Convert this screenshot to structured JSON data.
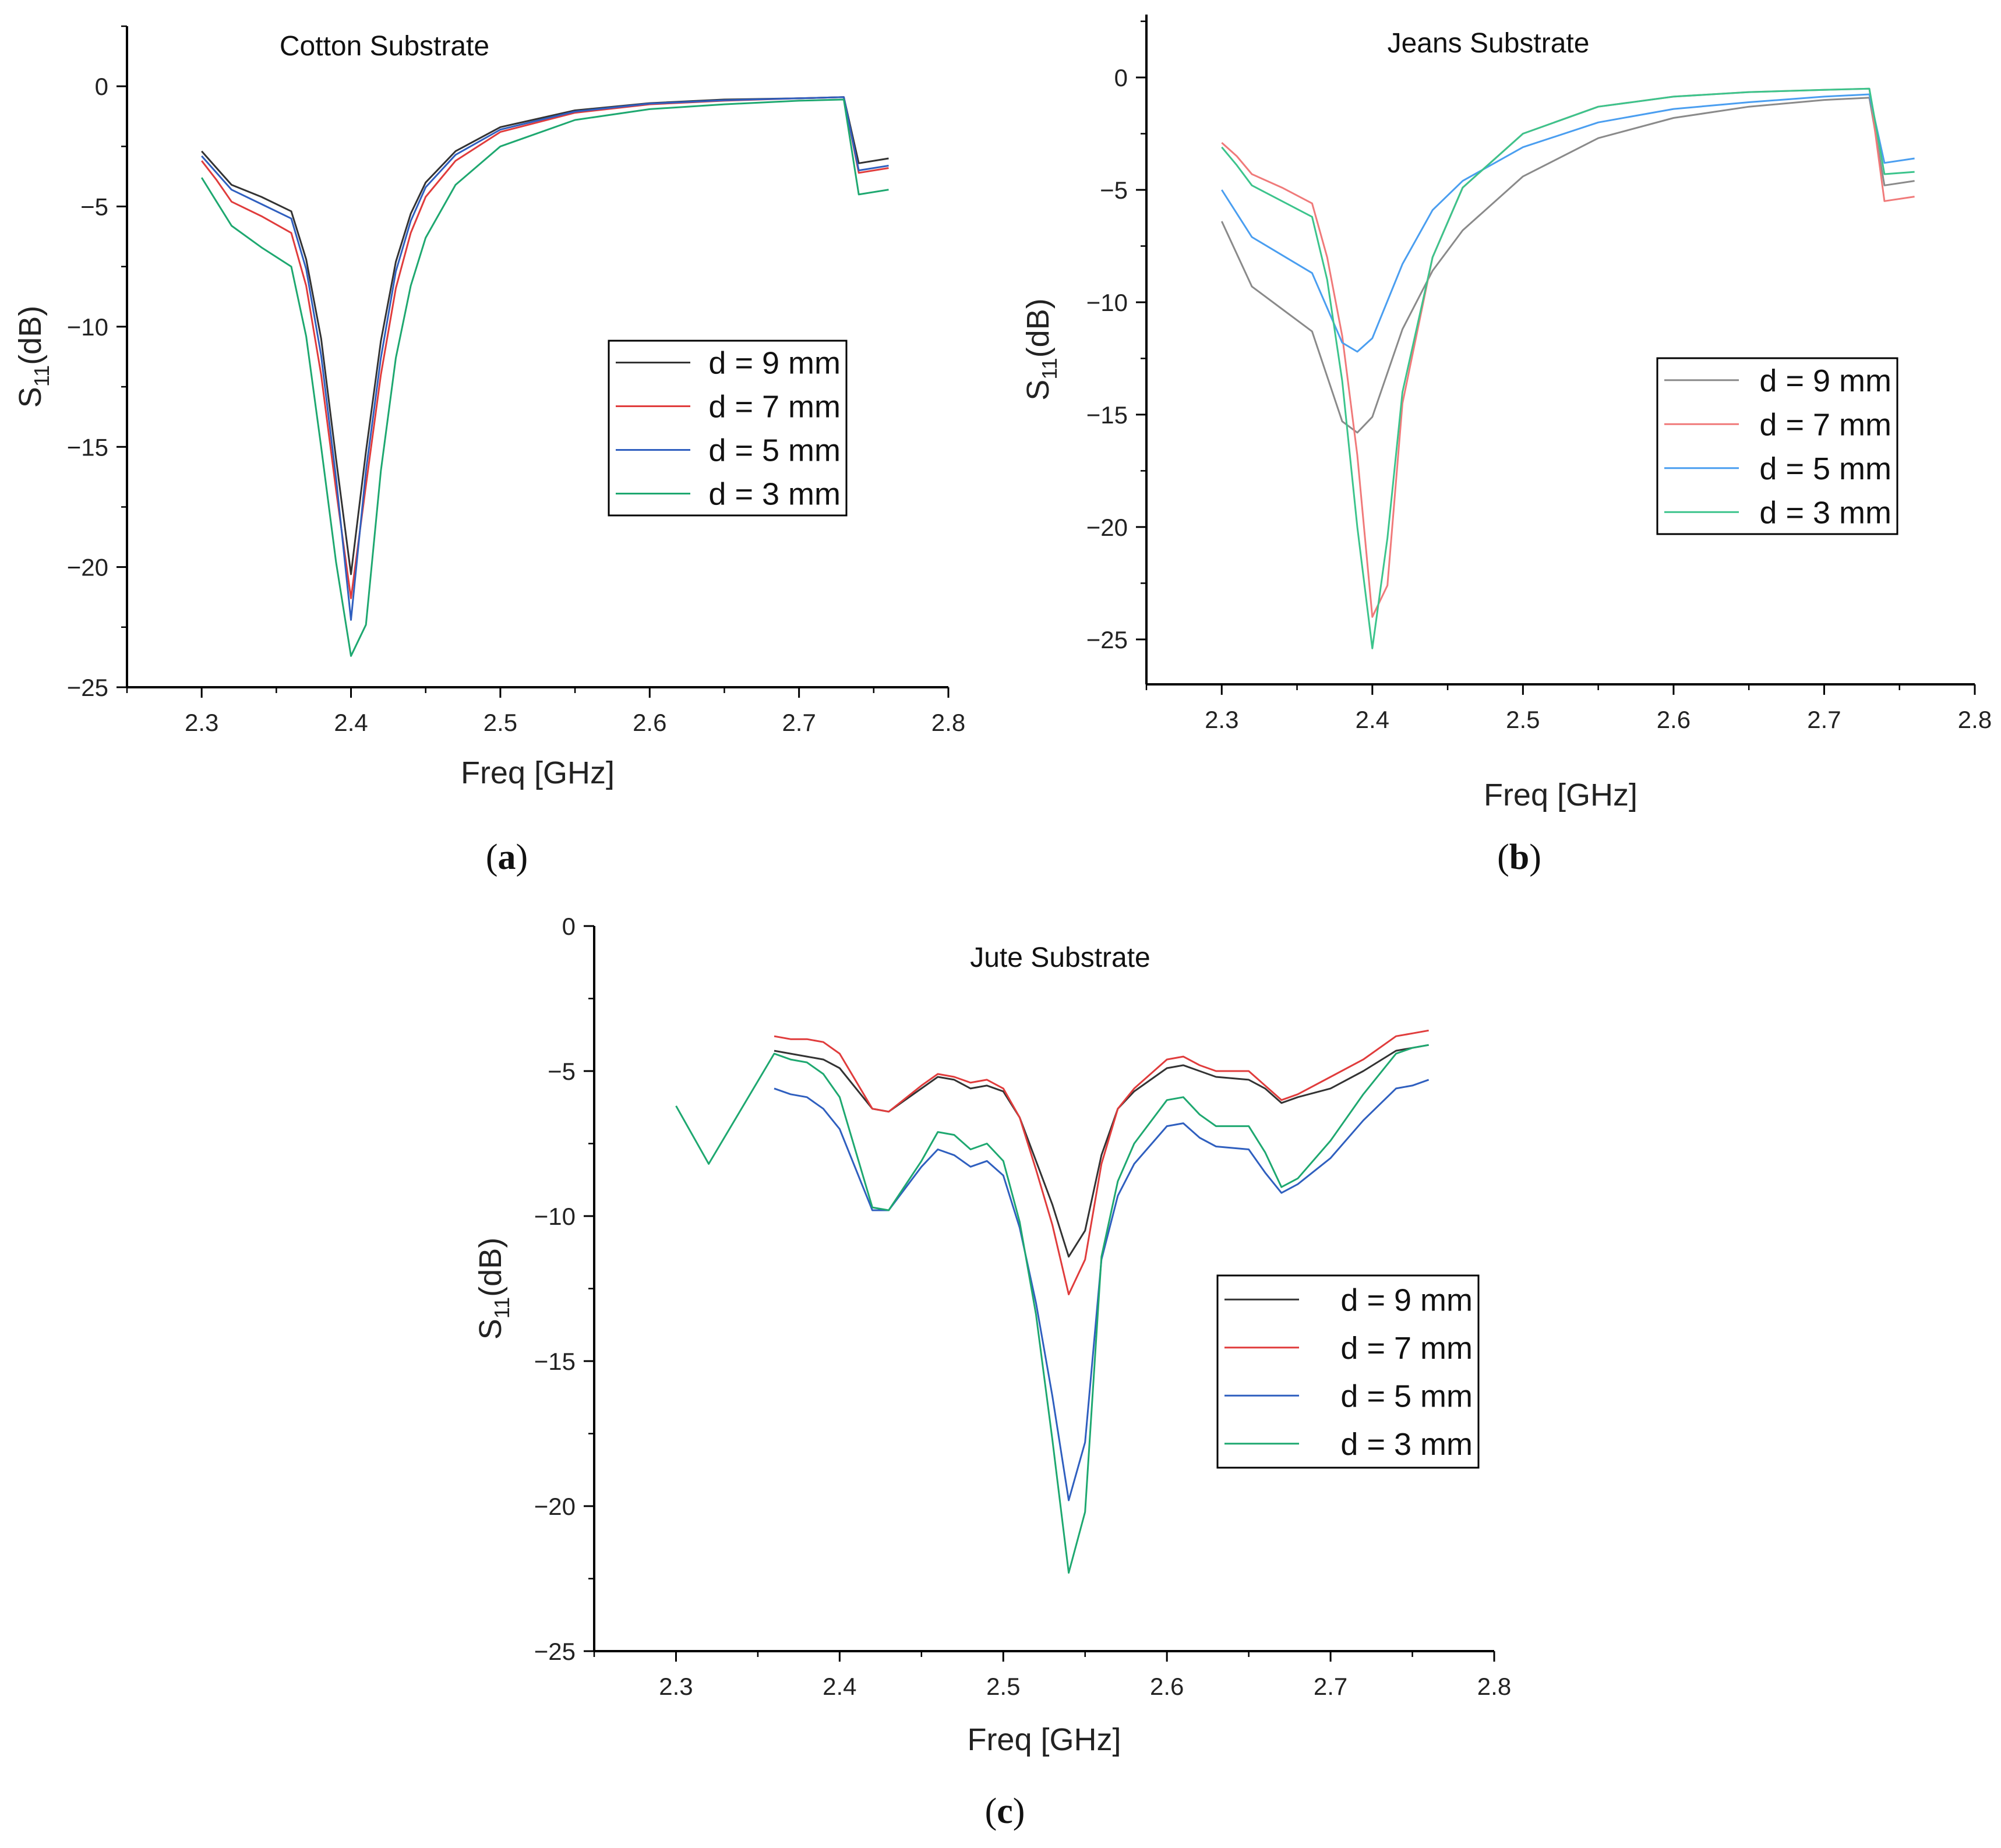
{
  "chart_data": [
    {
      "id": "a",
      "type": "line",
      "title": "Cotton Substrate",
      "caption": "a",
      "xlabel": "Freq [GHz]",
      "ylabel_main": "S",
      "ylabel_sub": "11",
      "ylabel_unit": "(dB)",
      "xlim": [
        2.25,
        2.8
      ],
      "ylim": [
        -25,
        2.5
      ],
      "xticks": [
        2.3,
        2.4,
        2.5,
        2.6,
        2.7,
        2.8
      ],
      "xtick_labels": [
        "2.3",
        "2.4",
        "2.5",
        "2.6",
        "2.7",
        "2.8"
      ],
      "yticks": [
        -25,
        -20,
        -15,
        -10,
        -5,
        0
      ],
      "ytick_labels": [
        "−25",
        "−20",
        "−15",
        "−10",
        "−5",
        "0"
      ],
      "legend_position": "center-right",
      "series": [
        {
          "name": "d = 9 mm",
          "color": "#333333",
          "x": [
            2.3,
            2.31,
            2.32,
            2.34,
            2.36,
            2.37,
            2.38,
            2.39,
            2.4,
            2.41,
            2.42,
            2.43,
            2.44,
            2.45,
            2.47,
            2.5,
            2.55,
            2.6,
            2.65,
            2.7,
            2.73,
            2.74,
            2.76
          ],
          "y": [
            -2.7,
            -3.4,
            -4.1,
            -4.6,
            -5.2,
            -7.2,
            -10.5,
            -15.5,
            -20.3,
            -15.2,
            -10.6,
            -7.3,
            -5.3,
            -4.0,
            -2.7,
            -1.7,
            -1.0,
            -0.7,
            -0.55,
            -0.5,
            -0.45,
            -3.2,
            -3.0
          ]
        },
        {
          "name": "d = 7 mm",
          "color": "#e03c3c",
          "x": [
            2.3,
            2.31,
            2.32,
            2.34,
            2.36,
            2.37,
            2.38,
            2.39,
            2.4,
            2.41,
            2.42,
            2.43,
            2.44,
            2.45,
            2.47,
            2.5,
            2.55,
            2.6,
            2.65,
            2.7,
            2.73,
            2.74,
            2.76
          ],
          "y": [
            -3.1,
            -3.9,
            -4.8,
            -5.4,
            -6.1,
            -8.3,
            -12.0,
            -16.8,
            -21.3,
            -16.6,
            -12.0,
            -8.4,
            -6.1,
            -4.6,
            -3.1,
            -1.9,
            -1.1,
            -0.75,
            -0.6,
            -0.5,
            -0.45,
            -3.6,
            -3.4
          ]
        },
        {
          "name": "d = 5 mm",
          "color": "#2f5fbf",
          "x": [
            2.3,
            2.31,
            2.32,
            2.34,
            2.36,
            2.37,
            2.38,
            2.39,
            2.4,
            2.41,
            2.42,
            2.43,
            2.44,
            2.45,
            2.47,
            2.5,
            2.55,
            2.6,
            2.65,
            2.7,
            2.73,
            2.74,
            2.76
          ],
          "y": [
            -2.9,
            -3.6,
            -4.3,
            -4.9,
            -5.5,
            -7.6,
            -11.2,
            -16.3,
            -22.2,
            -16.0,
            -11.3,
            -7.7,
            -5.6,
            -4.2,
            -2.85,
            -1.8,
            -1.05,
            -0.72,
            -0.58,
            -0.5,
            -0.45,
            -3.5,
            -3.3
          ]
        },
        {
          "name": "d = 3 mm",
          "color": "#1ea870",
          "x": [
            2.3,
            2.31,
            2.32,
            2.34,
            2.36,
            2.37,
            2.38,
            2.39,
            2.4,
            2.41,
            2.42,
            2.43,
            2.44,
            2.45,
            2.47,
            2.5,
            2.55,
            2.6,
            2.65,
            2.7,
            2.73,
            2.74,
            2.76
          ],
          "y": [
            -3.8,
            -4.8,
            -5.8,
            -6.7,
            -7.5,
            -10.4,
            -15.0,
            -19.8,
            -23.7,
            -22.4,
            -16.0,
            -11.3,
            -8.3,
            -6.3,
            -4.1,
            -2.5,
            -1.4,
            -0.95,
            -0.75,
            -0.6,
            -0.55,
            -4.5,
            -4.3
          ]
        }
      ]
    },
    {
      "id": "b",
      "type": "line",
      "title": "Jeans Substrate",
      "caption": "b",
      "xlabel": "Freq [GHz]",
      "ylabel_main": "S",
      "ylabel_sub": "11",
      "ylabel_unit": "(dB)",
      "xlim": [
        2.25,
        2.8
      ],
      "ylim": [
        -27,
        2.8
      ],
      "xticks": [
        2.3,
        2.4,
        2.5,
        2.6,
        2.7,
        2.8
      ],
      "xtick_labels": [
        "2.3",
        "2.4",
        "2.5",
        "2.6",
        "2.7",
        "2.8"
      ],
      "yticks": [
        -25,
        -20,
        -15,
        -10,
        -5,
        0
      ],
      "ytick_labels": [
        "−25",
        "−20",
        "−15",
        "−10",
        "−5",
        "0"
      ],
      "legend_position": "center-right",
      "series": [
        {
          "name": "d = 9 mm",
          "color": "#8a8a8a",
          "x": [
            2.3,
            2.32,
            2.34,
            2.36,
            2.38,
            2.39,
            2.4,
            2.42,
            2.44,
            2.46,
            2.5,
            2.55,
            2.6,
            2.65,
            2.7,
            2.73,
            2.74,
            2.76
          ],
          "y": [
            -6.4,
            -9.3,
            -10.3,
            -11.3,
            -15.3,
            -15.8,
            -15.1,
            -11.2,
            -8.6,
            -6.8,
            -4.4,
            -2.7,
            -1.8,
            -1.3,
            -1.0,
            -0.9,
            -4.8,
            -4.6
          ]
        },
        {
          "name": "d = 7 mm",
          "color": "#f07a7a",
          "x": [
            2.3,
            2.31,
            2.32,
            2.34,
            2.36,
            2.37,
            2.38,
            2.39,
            2.4,
            2.41,
            2.42,
            2.44,
            2.46,
            2.5,
            2.55,
            2.6,
            2.65,
            2.7,
            2.73,
            2.74,
            2.76
          ],
          "y": [
            -2.9,
            -3.5,
            -4.3,
            -4.9,
            -5.6,
            -8.0,
            -11.5,
            -16.8,
            -24.0,
            -22.6,
            -14.5,
            -8.0,
            -4.9,
            -2.5,
            -1.3,
            -0.85,
            -0.65,
            -0.55,
            -0.5,
            -5.5,
            -5.3
          ]
        },
        {
          "name": "d = 5 mm",
          "color": "#4a9ef0",
          "x": [
            2.3,
            2.32,
            2.34,
            2.36,
            2.38,
            2.39,
            2.4,
            2.42,
            2.44,
            2.46,
            2.5,
            2.55,
            2.6,
            2.65,
            2.7,
            2.73,
            2.74,
            2.76
          ],
          "y": [
            -5.0,
            -7.1,
            -7.9,
            -8.7,
            -11.8,
            -12.2,
            -11.6,
            -8.3,
            -5.9,
            -4.6,
            -3.1,
            -2.0,
            -1.4,
            -1.1,
            -0.85,
            -0.75,
            -3.8,
            -3.6
          ]
        },
        {
          "name": "d = 3 mm",
          "color": "#3cc48c",
          "x": [
            2.3,
            2.31,
            2.32,
            2.34,
            2.36,
            2.37,
            2.38,
            2.39,
            2.4,
            2.41,
            2.42,
            2.44,
            2.46,
            2.5,
            2.55,
            2.6,
            2.65,
            2.7,
            2.73,
            2.74,
            2.76
          ],
          "y": [
            -3.1,
            -3.9,
            -4.8,
            -5.5,
            -6.2,
            -9.0,
            -13.5,
            -20.0,
            -25.4,
            -20.5,
            -14.0,
            -8.0,
            -4.9,
            -2.5,
            -1.3,
            -0.85,
            -0.65,
            -0.55,
            -0.5,
            -4.3,
            -4.2
          ]
        }
      ]
    },
    {
      "id": "c",
      "type": "line",
      "title": "Jute Substrate",
      "caption": "c",
      "xlabel": "Freq [GHz]",
      "ylabel_main": "S",
      "ylabel_sub": "11",
      "ylabel_unit": "(dB)",
      "xlim": [
        2.25,
        2.8
      ],
      "ylim": [
        -25,
        0
      ],
      "xticks": [
        2.3,
        2.4,
        2.5,
        2.6,
        2.7,
        2.8
      ],
      "xtick_labels": [
        "2.3",
        "2.4",
        "2.5",
        "2.6",
        "2.7",
        "2.8"
      ],
      "yticks": [
        -25,
        -20,
        -15,
        -10,
        -5,
        0
      ],
      "ytick_labels": [
        "−25",
        "−20",
        "−15",
        "−10",
        "−5",
        "0"
      ],
      "legend_position": "center-right",
      "series": [
        {
          "name": "d = 9 mm",
          "color": "#333333",
          "x": [
            2.36,
            2.37,
            2.38,
            2.39,
            2.4,
            2.42,
            2.43,
            2.45,
            2.46,
            2.47,
            2.48,
            2.49,
            2.5,
            2.51,
            2.52,
            2.53,
            2.54,
            2.55,
            2.56,
            2.57,
            2.58,
            2.6,
            2.61,
            2.62,
            2.63,
            2.65,
            2.66,
            2.67,
            2.68,
            2.7,
            2.72,
            2.74,
            2.75,
            2.76
          ],
          "y": [
            -4.3,
            -4.4,
            -4.5,
            -4.6,
            -4.9,
            -6.3,
            -6.4,
            -5.6,
            -5.2,
            -5.3,
            -5.6,
            -5.5,
            -5.7,
            -6.6,
            -8.1,
            -9.6,
            -11.4,
            -10.5,
            -7.9,
            -6.3,
            -5.7,
            -4.9,
            -4.8,
            -5.0,
            -5.2,
            -5.3,
            -5.6,
            -6.1,
            -5.9,
            -5.6,
            -5.0,
            -4.3,
            -4.2,
            -4.1
          ]
        },
        {
          "name": "d = 7 mm",
          "color": "#e03c3c",
          "x": [
            2.36,
            2.37,
            2.38,
            2.39,
            2.4,
            2.42,
            2.43,
            2.45,
            2.46,
            2.47,
            2.48,
            2.49,
            2.5,
            2.51,
            2.52,
            2.53,
            2.54,
            2.55,
            2.56,
            2.57,
            2.58,
            2.6,
            2.61,
            2.62,
            2.63,
            2.65,
            2.66,
            2.67,
            2.68,
            2.7,
            2.72,
            2.74,
            2.75,
            2.76
          ],
          "y": [
            -3.8,
            -3.9,
            -3.9,
            -4.0,
            -4.4,
            -6.3,
            -6.4,
            -5.5,
            -5.1,
            -5.2,
            -5.4,
            -5.3,
            -5.6,
            -6.6,
            -8.4,
            -10.3,
            -12.7,
            -11.5,
            -8.2,
            -6.3,
            -5.6,
            -4.6,
            -4.5,
            -4.8,
            -5.0,
            -5.0,
            -5.5,
            -6.0,
            -5.8,
            -5.2,
            -4.6,
            -3.8,
            -3.7,
            -3.6
          ]
        },
        {
          "name": "d = 5 mm",
          "color": "#2f5fbf",
          "x": [
            2.36,
            2.37,
            2.38,
            2.39,
            2.4,
            2.42,
            2.43,
            2.45,
            2.46,
            2.47,
            2.48,
            2.49,
            2.5,
            2.51,
            2.52,
            2.53,
            2.54,
            2.55,
            2.56,
            2.57,
            2.58,
            2.6,
            2.61,
            2.62,
            2.63,
            2.65,
            2.66,
            2.67,
            2.68,
            2.7,
            2.72,
            2.74,
            2.75,
            2.76
          ],
          "y": [
            -5.6,
            -5.8,
            -5.9,
            -6.3,
            -7.0,
            -9.8,
            -9.8,
            -8.3,
            -7.7,
            -7.9,
            -8.3,
            -8.1,
            -8.6,
            -10.4,
            -13.0,
            -16.2,
            -19.8,
            -17.8,
            -11.5,
            -9.3,
            -8.2,
            -6.9,
            -6.8,
            -7.3,
            -7.6,
            -7.7,
            -8.5,
            -9.2,
            -8.9,
            -8.0,
            -6.7,
            -5.6,
            -5.5,
            -5.3
          ]
        },
        {
          "name": "d = 3 mm",
          "color": "#1ea870",
          "x": [
            2.3,
            2.32,
            2.36,
            2.37,
            2.38,
            2.39,
            2.4,
            2.42,
            2.43,
            2.45,
            2.46,
            2.47,
            2.48,
            2.49,
            2.5,
            2.51,
            2.52,
            2.53,
            2.54,
            2.55,
            2.56,
            2.57,
            2.58,
            2.6,
            2.61,
            2.62,
            2.63,
            2.65,
            2.66,
            2.67,
            2.68,
            2.7,
            2.72,
            2.74,
            2.75,
            2.76
          ],
          "y": [
            -6.2,
            -8.2,
            -4.4,
            -4.6,
            -4.7,
            -5.1,
            -5.9,
            -9.7,
            -9.8,
            -8.1,
            -7.1,
            -7.2,
            -7.7,
            -7.5,
            -8.1,
            -10.2,
            -13.4,
            -17.7,
            -22.3,
            -20.2,
            -11.4,
            -8.8,
            -7.5,
            -6.0,
            -5.9,
            -6.5,
            -6.9,
            -6.9,
            -7.8,
            -9.0,
            -8.7,
            -7.4,
            -5.8,
            -4.4,
            -4.2,
            -4.1
          ]
        }
      ]
    }
  ]
}
